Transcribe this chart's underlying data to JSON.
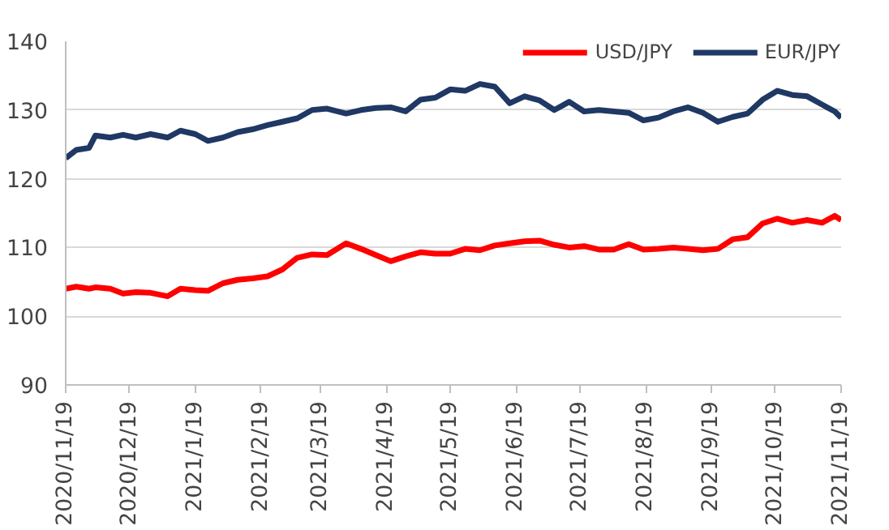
{
  "chart_data": {
    "type": "line",
    "x": [
      "2020-11-19",
      "2020-11-24",
      "2020-11-30",
      "2020-12-03",
      "2020-12-10",
      "2020-12-16",
      "2020-12-22",
      "2020-12-29",
      "2021-01-06",
      "2021-01-12",
      "2021-01-19",
      "2021-01-25",
      "2021-02-01",
      "2021-02-08",
      "2021-02-15",
      "2021-02-22",
      "2021-03-01",
      "2021-03-08",
      "2021-03-15",
      "2021-03-22",
      "2021-03-31",
      "2021-04-07",
      "2021-04-14",
      "2021-04-21",
      "2021-04-28",
      "2021-05-05",
      "2021-05-12",
      "2021-05-19",
      "2021-05-26",
      "2021-06-02",
      "2021-06-09",
      "2021-06-16",
      "2021-06-23",
      "2021-06-30",
      "2021-07-07",
      "2021-07-14",
      "2021-07-21",
      "2021-07-28",
      "2021-08-04",
      "2021-08-11",
      "2021-08-18",
      "2021-08-25",
      "2021-09-01",
      "2021-09-08",
      "2021-09-15",
      "2021-09-22",
      "2021-09-29",
      "2021-10-06",
      "2021-10-13",
      "2021-10-20",
      "2021-10-27",
      "2021-11-03",
      "2021-11-10",
      "2021-11-16",
      "2021-11-19"
    ],
    "series": [
      {
        "name": "USD/JPY",
        "color": "#ff0000",
        "values": [
          104.0,
          104.3,
          104.0,
          104.2,
          104.0,
          103.3,
          103.5,
          103.4,
          102.9,
          104.0,
          103.8,
          103.7,
          104.8,
          105.3,
          105.5,
          105.8,
          106.8,
          108.5,
          109.0,
          108.9,
          110.6,
          109.8,
          108.9,
          108.0,
          108.7,
          109.3,
          109.1,
          109.1,
          109.8,
          109.6,
          110.3,
          110.6,
          110.9,
          111.0,
          110.4,
          110.0,
          110.2,
          109.7,
          109.7,
          110.5,
          109.7,
          109.8,
          110.0,
          109.8,
          109.6,
          109.8,
          111.2,
          111.5,
          113.5,
          114.2,
          113.6,
          114.0,
          113.6,
          114.6,
          114.0
        ]
      },
      {
        "name": "EUR/JPY",
        "color": "#1f3864",
        "values": [
          123.0,
          124.2,
          124.5,
          126.3,
          126.0,
          126.4,
          126.0,
          126.5,
          126.0,
          127.0,
          126.5,
          125.5,
          126.0,
          126.8,
          127.2,
          127.8,
          128.3,
          128.8,
          130.0,
          130.2,
          129.5,
          130.0,
          130.3,
          130.4,
          129.8,
          131.5,
          131.8,
          133.0,
          132.8,
          133.8,
          133.4,
          131.0,
          132.0,
          131.4,
          130.0,
          131.2,
          129.8,
          130.0,
          129.8,
          129.6,
          128.5,
          128.9,
          129.8,
          130.4,
          129.6,
          128.3,
          129.0,
          129.5,
          131.5,
          132.8,
          132.2,
          132.0,
          130.8,
          129.8,
          128.9
        ]
      }
    ],
    "ylim": [
      90,
      140
    ],
    "yticks": [
      90,
      100,
      110,
      120,
      130,
      140
    ],
    "xlim": [
      "2020-11-19",
      "2021-11-19"
    ],
    "xticks": [
      {
        "value": "2020-11-19",
        "label": "2020/11/19"
      },
      {
        "value": "2020-12-19",
        "label": "2020/12/19"
      },
      {
        "value": "2021-01-19",
        "label": "2021/1/19"
      },
      {
        "value": "2021-02-19",
        "label": "2021/2/19"
      },
      {
        "value": "2021-03-19",
        "label": "2021/3/19"
      },
      {
        "value": "2021-04-19",
        "label": "2021/4/19"
      },
      {
        "value": "2021-05-19",
        "label": "2021/5/19"
      },
      {
        "value": "2021-06-19",
        "label": "2021/6/19"
      },
      {
        "value": "2021-07-19",
        "label": "2021/7/19"
      },
      {
        "value": "2021-08-19",
        "label": "2021/8/19"
      },
      {
        "value": "2021-09-19",
        "label": "2021/9/19"
      },
      {
        "value": "2021-10-19",
        "label": "2021/10/19"
      },
      {
        "value": "2021-11-19",
        "label": "2021/11/19"
      }
    ],
    "grid": "y",
    "legend": "top right",
    "marker": "none",
    "line_style": "solid"
  }
}
